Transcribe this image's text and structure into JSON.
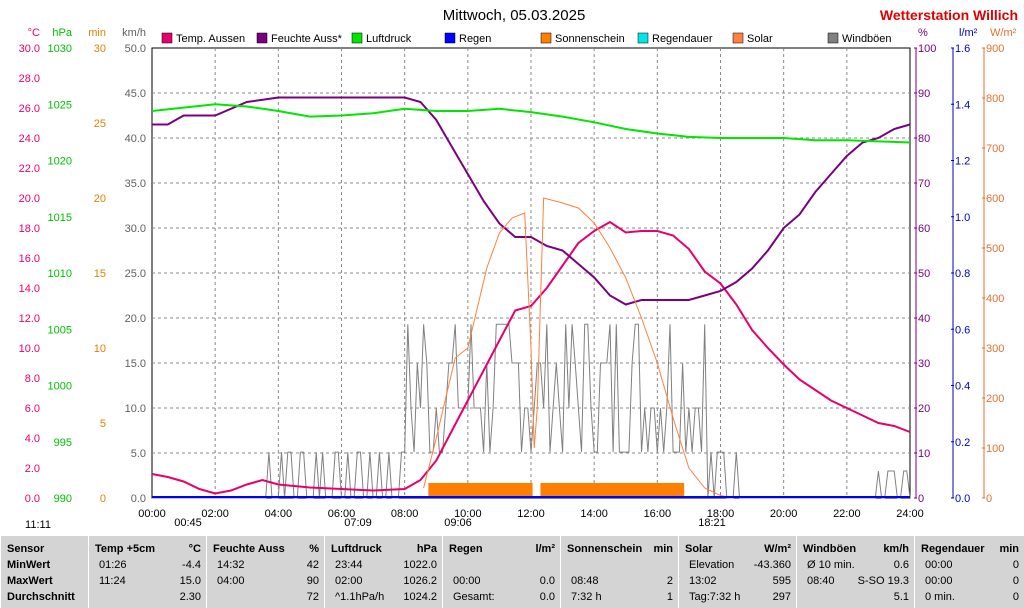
{
  "header": {
    "title": "Mittwoch, 05.03.2025",
    "station": "Wetterstation Willich"
  },
  "colors": {
    "temp": "#e6006e",
    "humidity": "#7a0080",
    "pressure": "#00e600",
    "rain": "#0000ff",
    "sunshine": "#ff8000",
    "rainduration": "#00e6e6",
    "solar": "#ff8040",
    "gust": "#808080"
  },
  "chart_data": {
    "type": "line",
    "x_ticks": [
      "00:00",
      "02:00",
      "04:00",
      "06:00",
      "08:00",
      "10:00",
      "12:00",
      "14:00",
      "16:00",
      "18:00",
      "20:00",
      "22:00",
      "24:00"
    ],
    "axes": {
      "temp": {
        "unit": "°C",
        "ticks": [
          "30.0",
          "28.0",
          "26.0",
          "24.0",
          "22.0",
          "20.0",
          "18.0",
          "16.0",
          "14.0",
          "12.0",
          "10.0",
          "8.0",
          "6.0",
          "4.0",
          "2.0",
          "0.0"
        ],
        "range": [
          0,
          30
        ]
      },
      "pressure": {
        "unit": "hPa",
        "ticks": [
          "1030",
          "1025",
          "1020",
          "1015",
          "1010",
          "1005",
          "1000",
          "995",
          "990"
        ],
        "range": [
          990,
          1030
        ]
      },
      "minutes": {
        "unit": "min",
        "ticks": [
          "30",
          "25",
          "20",
          "15",
          "10",
          "5",
          "0"
        ],
        "range": [
          0,
          30
        ]
      },
      "wind": {
        "unit": "km/h",
        "ticks": [
          "50.0",
          "45.0",
          "40.0",
          "35.0",
          "30.0",
          "25.0",
          "20.0",
          "15.0",
          "10.0",
          "5.0",
          "0.0"
        ],
        "range": [
          0,
          50
        ]
      },
      "humidity": {
        "unit": "%",
        "ticks": [
          "100",
          "90",
          "80",
          "70",
          "60",
          "50",
          "40",
          "30",
          "20",
          "10",
          "0"
        ],
        "range": [
          0,
          100
        ]
      },
      "rain": {
        "unit": "l/m²",
        "ticks": [
          "1.6",
          "1.4",
          "1.2",
          "1.0",
          "0.8",
          "0.6",
          "0.4",
          "0.2",
          "0.0"
        ],
        "range": [
          0,
          1.6
        ]
      },
      "solar": {
        "unit": "W/m²",
        "ticks": [
          "900",
          "800",
          "700",
          "600",
          "500",
          "400",
          "300",
          "200",
          "100",
          "0"
        ],
        "range": [
          0,
          900
        ]
      }
    },
    "legend": [
      "Temp. Aussen",
      "Feuchte Auss*",
      "Luftdruck",
      "Regen",
      "Sonnenschein",
      "Regendauer",
      "Solar",
      "Windböen"
    ],
    "series": [
      {
        "name": "Temp. Aussen",
        "axis": "temp",
        "x": [
          0,
          0.5,
          1.0,
          1.5,
          2.0,
          2.5,
          3.0,
          3.5,
          4.0,
          5.0,
          6.0,
          7.0,
          8.0,
          8.5,
          9.0,
          9.5,
          10.0,
          10.5,
          11.0,
          11.5,
          12.0,
          12.5,
          13.0,
          13.5,
          14.0,
          14.5,
          15.0,
          15.5,
          16.0,
          16.5,
          17.0,
          17.5,
          18.0,
          18.5,
          19.0,
          19.5,
          20.0,
          20.5,
          21.0,
          21.5,
          22.0,
          22.5,
          23.0,
          23.5,
          24.0
        ],
        "values": [
          1.6,
          1.4,
          1.1,
          0.6,
          0.3,
          0.5,
          0.9,
          1.2,
          0.9,
          0.7,
          0.6,
          0.5,
          0.6,
          1.2,
          2.5,
          4.5,
          6.5,
          8.5,
          10.5,
          12.5,
          12.8,
          14.0,
          15.5,
          17.0,
          17.8,
          18.4,
          17.7,
          17.8,
          17.8,
          17.5,
          16.6,
          15.1,
          14.3,
          12.9,
          11.2,
          10.0,
          8.9,
          7.9,
          7.2,
          6.5,
          6.0,
          5.5,
          5.0,
          4.8,
          4.4
        ]
      },
      {
        "name": "Feuchte Auss*",
        "axis": "humidity",
        "x": [
          0,
          0.5,
          1.0,
          2.0,
          3.0,
          4.0,
          5.0,
          6.0,
          7.0,
          8.0,
          8.5,
          9.0,
          9.5,
          10.0,
          10.5,
          11.0,
          11.5,
          12.0,
          12.5,
          13.0,
          13.5,
          14.0,
          14.5,
          15.0,
          15.5,
          16.0,
          16.5,
          17.0,
          17.5,
          18.0,
          18.5,
          19.0,
          19.5,
          20.0,
          20.5,
          21.0,
          21.5,
          22.0,
          22.5,
          23.0,
          23.5,
          24.0
        ],
        "values": [
          83,
          83,
          85,
          85,
          88,
          89,
          89,
          89,
          89,
          89,
          88,
          84,
          78,
          72,
          66,
          61,
          58,
          58,
          56,
          55,
          52,
          49,
          45,
          43,
          44,
          44,
          44,
          44,
          45,
          46,
          48,
          51,
          55,
          60,
          63,
          68,
          72,
          76,
          79,
          80,
          82,
          83
        ]
      },
      {
        "name": "Luftdruck",
        "axis": "pressure",
        "x": [
          0,
          1.0,
          2.0,
          3.0,
          4.0,
          5.0,
          6.0,
          7.0,
          8.0,
          9.0,
          10.0,
          11.0,
          12.0,
          13.0,
          14.0,
          15.0,
          16.0,
          17.0,
          18.0,
          19.0,
          20.0,
          21.0,
          22.0,
          23.0,
          24.0
        ],
        "values": [
          1024.4,
          1024.7,
          1025.0,
          1024.8,
          1024.4,
          1023.9,
          1024.0,
          1024.2,
          1024.6,
          1024.4,
          1024.4,
          1024.6,
          1024.3,
          1023.9,
          1023.4,
          1022.8,
          1022.4,
          1022.1,
          1022.0,
          1022.0,
          1022.0,
          1021.8,
          1021.8,
          1021.7,
          1021.6
        ]
      },
      {
        "name": "Solar",
        "axis": "solar",
        "x": [
          8.6,
          9.0,
          9.3,
          9.6,
          10.0,
          10.3,
          10.6,
          11.0,
          11.4,
          11.8,
          12.0,
          12.1,
          12.2,
          12.4,
          12.7,
          13.0,
          13.5,
          14.0,
          14.5,
          15.0,
          15.5,
          16.0,
          16.5,
          17.0,
          17.5,
          18.0,
          18.4
        ],
        "values": [
          20,
          120,
          200,
          280,
          300,
          380,
          460,
          530,
          560,
          570,
          300,
          100,
          180,
          600,
          595,
          590,
          580,
          550,
          500,
          440,
          360,
          270,
          160,
          60,
          20,
          5,
          0
        ]
      }
    ],
    "bars": {
      "name": "Sonnenschein",
      "axis": "minutes",
      "x_ranges": [
        [
          8.75,
          12.05
        ],
        [
          12.3,
          16.85
        ]
      ],
      "value": 1
    },
    "gust_range": {
      "name": "Windböen",
      "axis": "wind",
      "values_kmh": [
        0,
        5.1,
        10,
        15,
        19.3
      ]
    },
    "sun_markers": [
      "11:11",
      "00:45",
      "07:09",
      "09:06",
      "18:21"
    ]
  },
  "table": {
    "headers": [
      {
        "label": "Sensor",
        "unit": ""
      },
      {
        "label": "Temp +5cm",
        "unit": "°C"
      },
      {
        "label": "Feuchte Auss",
        "unit": "%"
      },
      {
        "label": "Luftdruck",
        "unit": "hPa"
      },
      {
        "label": "Regen",
        "unit": "l/m²"
      },
      {
        "label": "Sonnenschein",
        "unit": "min"
      },
      {
        "label": "Solar",
        "unit": "W/m²"
      },
      {
        "label": "Windböen",
        "unit": "km/h"
      },
      {
        "label": "Regendauer",
        "unit": "min"
      }
    ],
    "rows": [
      {
        "label": "MinWert",
        "cells": [
          [
            "01:26",
            "-4.4"
          ],
          [
            "14:32",
            "42"
          ],
          [
            "23:44",
            "1022.0"
          ],
          [
            "",
            ""
          ],
          [
            "",
            ""
          ],
          [
            "Elevation",
            "-43.360"
          ],
          [
            "Ø 10 min.",
            "0.6"
          ],
          [
            "00:00",
            "0"
          ]
        ]
      },
      {
        "label": "MaxWert",
        "cells": [
          [
            "11:24",
            "15.0"
          ],
          [
            "04:00",
            "90"
          ],
          [
            "02:00",
            "1026.2"
          ],
          [
            "00:00",
            "0.0"
          ],
          [
            "08:48",
            "2"
          ],
          [
            "13:02",
            "595"
          ],
          [
            "08:40",
            "S-SO 19.3"
          ],
          [
            "00:00",
            "0"
          ]
        ]
      },
      {
        "label": "Durchschnitt",
        "cells": [
          [
            "",
            "2.30"
          ],
          [
            "",
            "72"
          ],
          [
            "^1.1hPa/h",
            "1024.2"
          ],
          [
            "Gesamt:",
            "0.0"
          ],
          [
            "7:32 h",
            "1"
          ],
          [
            "Tag:7:32 h",
            "297"
          ],
          [
            "",
            "5.1"
          ],
          [
            "0 min.",
            "0"
          ]
        ]
      }
    ]
  }
}
